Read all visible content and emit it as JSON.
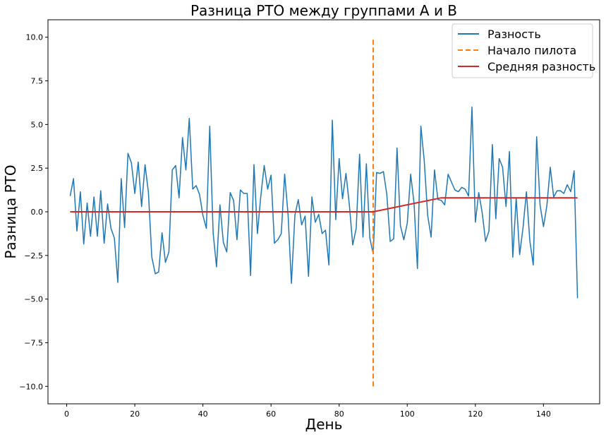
{
  "chart_data": {
    "type": "line",
    "title": "Разница РТО между группами А и В",
    "xlabel": "День",
    "ylabel": "Разница РТО",
    "xlim": [
      -5.5,
      156.5
    ],
    "ylim": [
      -11,
      11
    ],
    "xticks": [
      0,
      20,
      40,
      60,
      80,
      100,
      120,
      140
    ],
    "xtick_labels": [
      "0",
      "20",
      "40",
      "60",
      "80",
      "100",
      "120",
      "140"
    ],
    "yticks": [
      -10,
      -7.5,
      -5,
      -2.5,
      0,
      2.5,
      5,
      7.5,
      10
    ],
    "ytick_labels": [
      "−10.0",
      "−7.5",
      "−5.0",
      "−2.5",
      "0.0",
      "2.5",
      "5.0",
      "7.5",
      "10.0"
    ],
    "legend_position": "top-right",
    "colors": {
      "difference": "#1f77b4",
      "pilot": "#ff7f0e",
      "mean": "#d62728"
    },
    "series": [
      {
        "name": "Разность",
        "style": "solid",
        "x": [
          1,
          2,
          3,
          4,
          5,
          6,
          7,
          8,
          9,
          10,
          11,
          12,
          13,
          14,
          15,
          16,
          17,
          18,
          19,
          20,
          21,
          22,
          23,
          24,
          25,
          26,
          27,
          28,
          29,
          30,
          31,
          32,
          33,
          34,
          35,
          36,
          37,
          38,
          39,
          40,
          41,
          42,
          43,
          44,
          45,
          46,
          47,
          48,
          49,
          50,
          51,
          52,
          53,
          54,
          55,
          56,
          57,
          58,
          59,
          60,
          61,
          62,
          63,
          64,
          65,
          66,
          67,
          68,
          69,
          70,
          71,
          72,
          73,
          74,
          75,
          76,
          77,
          78,
          79,
          80,
          81,
          82,
          83,
          84,
          85,
          86,
          87,
          88,
          89,
          90,
          91,
          92,
          93,
          94,
          95,
          96,
          97,
          98,
          99,
          100,
          101,
          102,
          103,
          104,
          105,
          106,
          107,
          108,
          109,
          110,
          111,
          112,
          113,
          114,
          115,
          116,
          117,
          118,
          119,
          120,
          121,
          122,
          123,
          124,
          125,
          126,
          127,
          128,
          129,
          130,
          131,
          132,
          133,
          134,
          135,
          136,
          137,
          138,
          139,
          140,
          141,
          142,
          143,
          144,
          145,
          146,
          147,
          148,
          149,
          150
        ],
        "values": [
          0.9,
          1.9,
          -1.1,
          1.15,
          -1.85,
          0.5,
          -1.4,
          0.85,
          -1.4,
          1.2,
          -1.8,
          0.45,
          -0.95,
          -1.5,
          -4.05,
          1.9,
          -0.9,
          3.35,
          2.8,
          1.05,
          2.85,
          0.3,
          2.7,
          1.1,
          -2.6,
          -3.55,
          -3.45,
          -1.2,
          -2.9,
          -2.3,
          2.4,
          2.65,
          0.8,
          4.25,
          2.4,
          5.35,
          1.3,
          1.5,
          1.0,
          -0.2,
          -0.95,
          4.9,
          -1.2,
          -3.15,
          0.4,
          -1.75,
          -2.3,
          1.1,
          0.65,
          -1.6,
          1.25,
          1.05,
          1.05,
          -3.65,
          2.7,
          -1.25,
          0.9,
          2.65,
          1.3,
          2.1,
          -1.8,
          -1.6,
          -1.25,
          2.15,
          -0.15,
          -4.1,
          -0.2,
          0.7,
          -0.75,
          -0.25,
          -3.7,
          0.85,
          -0.6,
          -0.15,
          -1.25,
          -1.05,
          -3.05,
          5.25,
          -0.45,
          3.05,
          0.75,
          2.2,
          0.4,
          -1.9,
          -0.95,
          3.3,
          -1.45,
          2.75,
          -1.5,
          -2.4,
          2.25,
          2.2,
          2.3,
          1.0,
          -1.7,
          -1.55,
          3.65,
          -0.8,
          -1.6,
          -0.65,
          2.15,
          0.5,
          -3.25,
          4.9,
          2.9,
          -0.2,
          -1.45,
          2.4,
          0.7,
          0.65,
          0.4,
          2.15,
          1.7,
          1.25,
          1.15,
          1.4,
          1.3,
          0.9,
          6.0,
          -0.6,
          1.1,
          -0.05,
          -1.7,
          -1.1,
          3.85,
          -0.4,
          3.05,
          2.55,
          0.3,
          3.45,
          -2.6,
          0.8,
          -2.45,
          -0.9,
          1.15,
          -1.65,
          -3.05,
          4.3,
          0.4,
          -0.85,
          0.35,
          2.55,
          0.85,
          1.2,
          1.2,
          1.05,
          1.55,
          1.15,
          2.35,
          -4.95
        ]
      },
      {
        "name": "Начало пилота",
        "style": "dashed",
        "x": [
          90,
          90
        ],
        "values": [
          -10,
          10
        ]
      },
      {
        "name": "Средняя разность",
        "style": "solid",
        "x": [
          1,
          90,
          110,
          150
        ],
        "values": [
          0,
          0,
          0.8,
          0.8
        ]
      }
    ]
  }
}
